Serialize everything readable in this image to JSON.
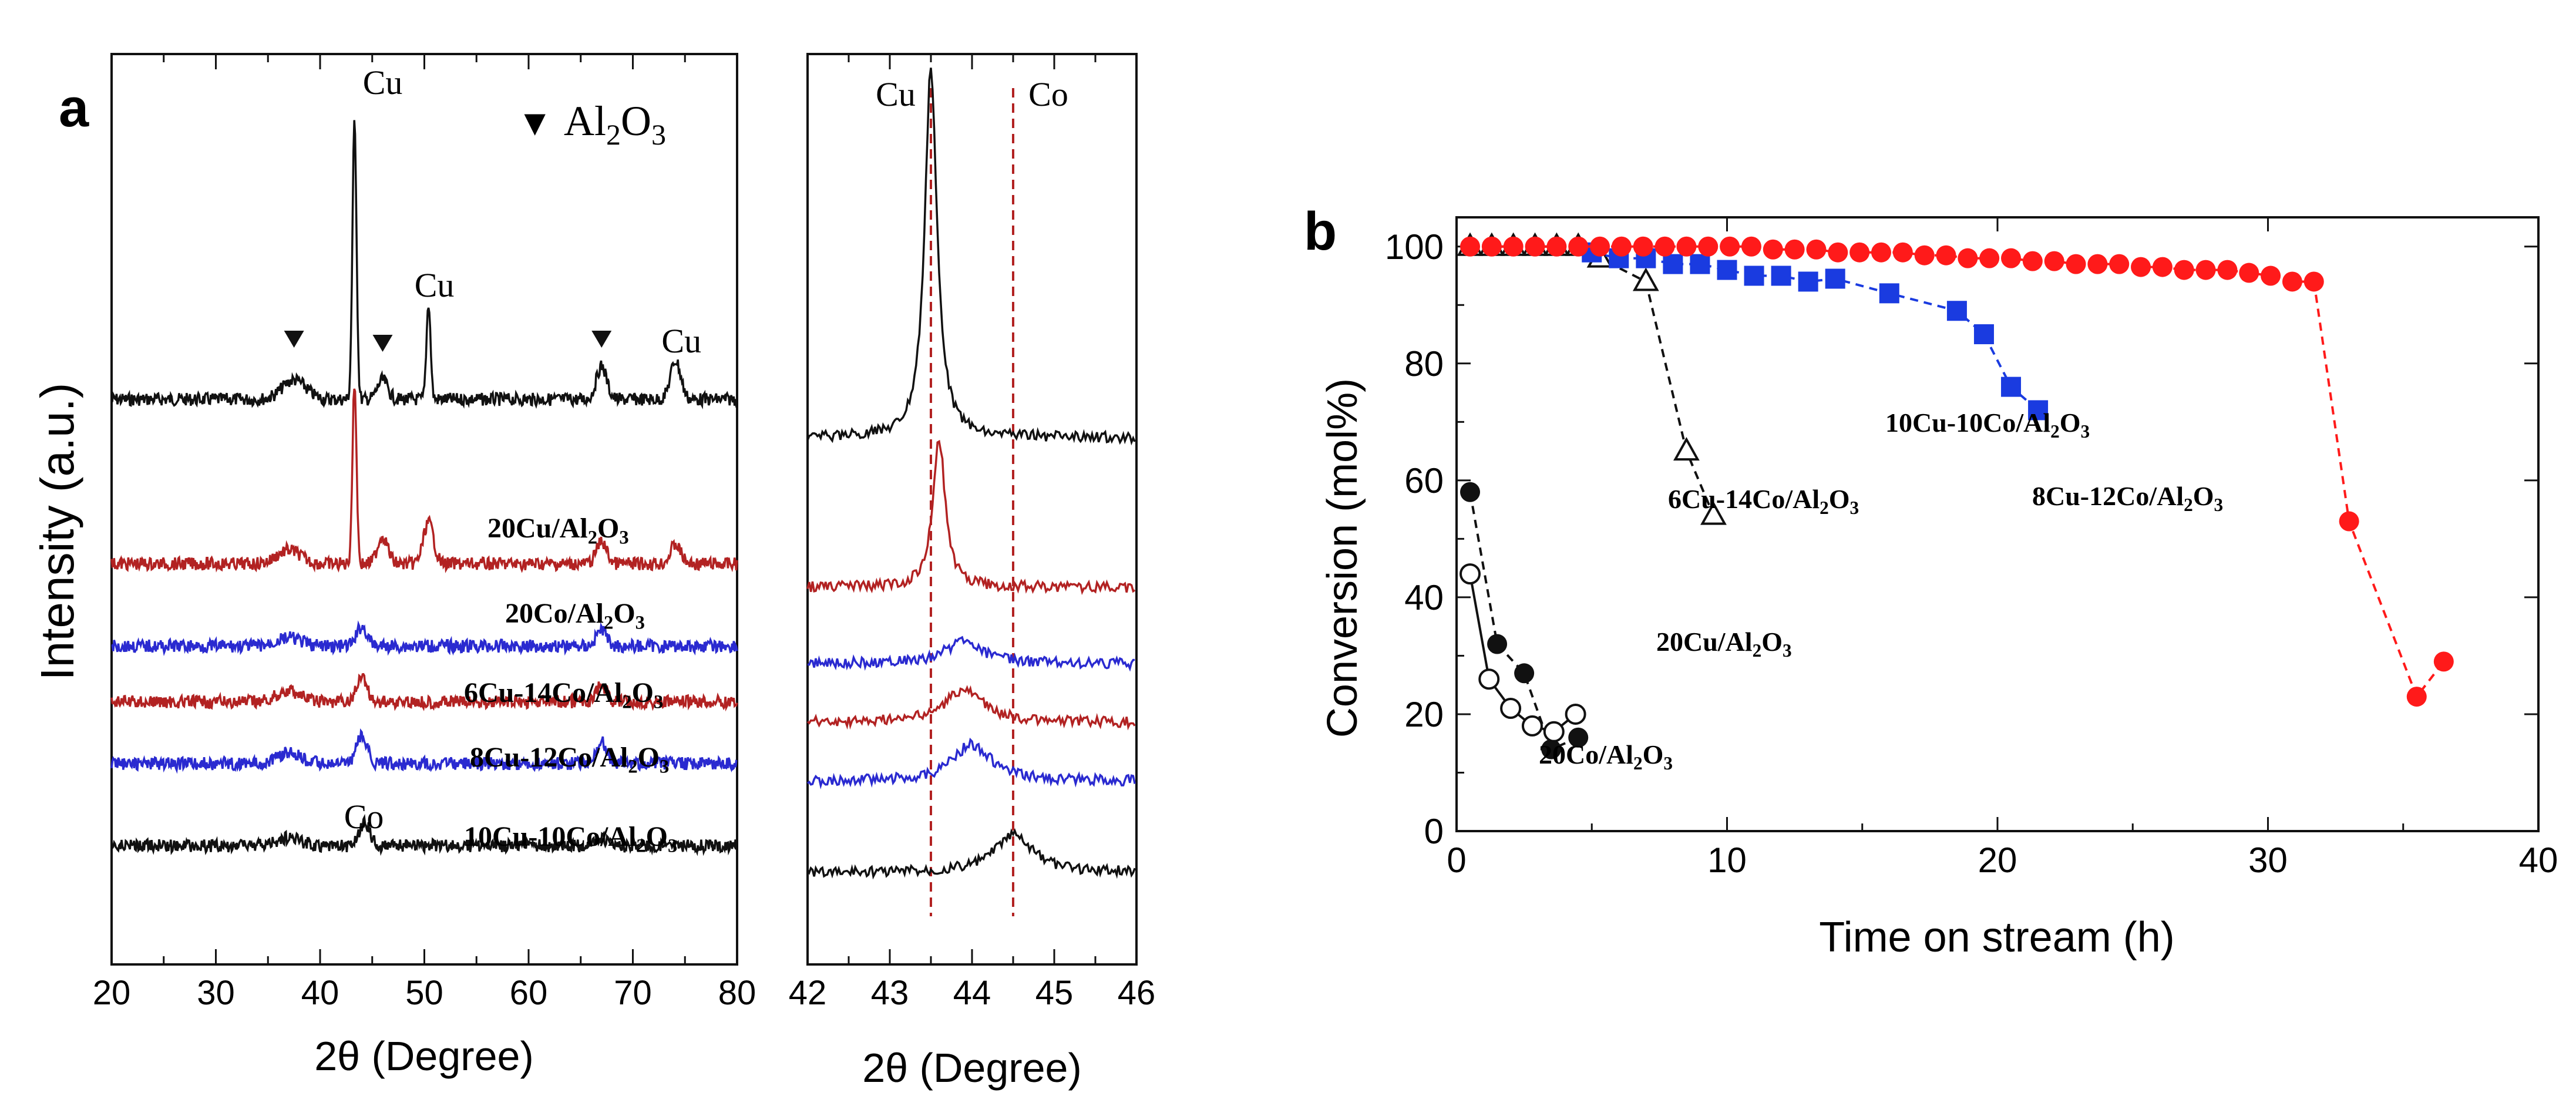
{
  "panel_a": {
    "label": "a",
    "ylabel": "Intensity (a.u.)",
    "xlabel_left": "2θ (Degree)",
    "xlabel_right": "2θ (Degree)",
    "left_xticks": [
      "20",
      "30",
      "40",
      "50",
      "60",
      "70",
      "80"
    ],
    "right_xticks": [
      "42",
      "43",
      "44",
      "45",
      "46"
    ],
    "legend_marker": "▼",
    "legend_base": "Al",
    "legend_sub1": "2",
    "legend_mid": "O",
    "legend_sub2": "3",
    "peak_labels": [
      {
        "text": "Cu",
        "angle": 43.3
      },
      {
        "text": "Cu",
        "angle": 50.4
      },
      {
        "text": "Cu",
        "angle": 74.1
      },
      {
        "text": "Co",
        "angle": 44.2
      }
    ],
    "right_peak_labels": [
      {
        "text": "Cu",
        "angle": 43.5
      },
      {
        "text": "Co",
        "angle": 44.5
      }
    ],
    "al2o3_positions": [
      37.5,
      46.0,
      67.0
    ],
    "trace_labels": [
      {
        "pre": "20Cu/Al",
        "sub1": "2",
        "mid": "O",
        "sub2": "3"
      },
      {
        "pre": "20Co/Al",
        "sub1": "2",
        "mid": "O",
        "sub2": "3"
      },
      {
        "pre": "6Cu-14Co/Al",
        "sub1": "2",
        "mid": "O",
        "sub2": "3"
      },
      {
        "pre": "8Cu-12Co/Al",
        "sub1": "2",
        "mid": "O",
        "sub2": "3"
      },
      {
        "pre": "10Cu-10Co/Al",
        "sub1": "2",
        "mid": "O",
        "sub2": "3"
      }
    ]
  },
  "chart_data": [
    {
      "type": "line",
      "panel": "a-left",
      "xlabel": "2θ (Degree)",
      "ylabel": "Intensity (a.u.)",
      "xlim": [
        20,
        80
      ],
      "series": [
        {
          "color": "#111111",
          "peaks": [
            [
              37.5,
              0.07
            ],
            [
              43.3,
              1.0
            ],
            [
              46.0,
              0.07
            ],
            [
              50.4,
              0.35
            ],
            [
              67.0,
              0.12
            ],
            [
              74.1,
              0.14
            ]
          ]
        },
        {
          "color": "#b22222",
          "peaks": [
            [
              37.0,
              0.05
            ],
            [
              43.3,
              0.65
            ],
            [
              46.0,
              0.1
            ],
            [
              50.4,
              0.15
            ],
            [
              67.0,
              0.08
            ],
            [
              74.1,
              0.07
            ]
          ]
        },
        {
          "color": "#2a2ad0",
          "peaks": [
            [
              37.0,
              0.03
            ],
            [
              44.0,
              0.07
            ],
            [
              67.0,
              0.06
            ]
          ]
        },
        {
          "color": "#b22222",
          "peaks": [
            [
              37.0,
              0.04
            ],
            [
              44.0,
              0.09
            ],
            [
              67.0,
              0.06
            ]
          ]
        },
        {
          "color": "#2a2ad0",
          "peaks": [
            [
              37.0,
              0.04
            ],
            [
              44.0,
              0.1
            ],
            [
              67.0,
              0.08
            ]
          ]
        },
        {
          "color": "#111111",
          "peaks": [
            [
              37.0,
              0.03
            ],
            [
              44.3,
              0.08
            ],
            [
              67.0,
              0.03
            ]
          ]
        }
      ]
    },
    {
      "type": "line",
      "panel": "a-right",
      "xlabel": "2θ (Degree)",
      "xlim": [
        42,
        46
      ],
      "reference_lines": [
        43.5,
        44.5
      ],
      "series": [
        {
          "color": "#111111",
          "peaks": [
            [
              43.5,
              1.0
            ]
          ]
        },
        {
          "color": "#b22222",
          "peaks": [
            [
              43.6,
              0.4
            ]
          ]
        },
        {
          "color": "#2a2ad0",
          "peaks": [
            [
              43.9,
              0.06
            ]
          ]
        },
        {
          "color": "#b22222",
          "peaks": [
            [
              43.9,
              0.09
            ]
          ]
        },
        {
          "color": "#2a2ad0",
          "peaks": [
            [
              44.0,
              0.1
            ]
          ]
        },
        {
          "color": "#111111",
          "peaks": [
            [
              44.5,
              0.1
            ]
          ]
        }
      ]
    },
    {
      "type": "scatter",
      "panel": "b",
      "label": "b",
      "xlabel": "Time on stream (h)",
      "ylabel": "Conversion (mol%)",
      "xlim": [
        0,
        40
      ],
      "ylim": [
        0,
        105
      ],
      "xticks": [
        "0",
        "10",
        "20",
        "30",
        "40"
      ],
      "yticks": [
        "0",
        "20",
        "40",
        "60",
        "80",
        "100"
      ],
      "series": [
        {
          "label_pre": "8Cu-12Co/Al",
          "label_sub1": "2",
          "label_mid": "O",
          "label_sub2": "3",
          "color": "#ff1a1a",
          "marker": "circle-filled",
          "line": "dashed",
          "x": [
            0.5,
            1.3,
            2.1,
            2.9,
            3.7,
            4.5,
            5.3,
            6.1,
            6.9,
            7.7,
            8.5,
            9.3,
            10.1,
            10.9,
            11.7,
            12.5,
            13.3,
            14.1,
            14.9,
            15.7,
            16.5,
            17.3,
            18.1,
            18.9,
            19.7,
            20.5,
            21.3,
            22.1,
            22.9,
            23.7,
            24.5,
            25.3,
            26.1,
            26.9,
            27.7,
            28.5,
            29.3,
            30.1,
            30.9,
            31.7,
            33.0,
            35.5,
            36.5
          ],
          "y": [
            100,
            100,
            100,
            100,
            100,
            100,
            100,
            100,
            100,
            100,
            100,
            100,
            100,
            100,
            99.5,
            99.5,
            99.5,
            99,
            99,
            99,
            99,
            98.5,
            98.5,
            98,
            98,
            98,
            97.5,
            97.5,
            97,
            97,
            97,
            96.5,
            96.5,
            96,
            96,
            96,
            95.5,
            95,
            94,
            94,
            53,
            23,
            29
          ]
        },
        {
          "label_pre": "10Cu-10Co/Al",
          "label_sub1": "2",
          "label_mid": "O",
          "label_sub2": "3",
          "color": "#1a3be0",
          "marker": "square-filled",
          "line": "dashed",
          "x": [
            5.0,
            6.0,
            7.0,
            8.0,
            9.0,
            10.0,
            11.0,
            12.0,
            13.0,
            14.0,
            16.0,
            18.5,
            19.5,
            20.5,
            21.5
          ],
          "y": [
            99,
            98,
            98,
            97,
            97,
            96,
            95,
            95,
            94,
            94.5,
            92,
            89,
            85,
            76,
            72
          ]
        },
        {
          "label_pre": "6Cu-14Co/Al",
          "label_sub1": "2",
          "label_mid": "O",
          "label_sub2": "3",
          "color": "#111111",
          "marker": "triangle-open",
          "line": "dashed",
          "x": [
            0.5,
            1.3,
            2.1,
            2.9,
            3.7,
            4.5,
            5.3,
            7.0,
            8.5,
            9.5
          ],
          "y": [
            100,
            100,
            100,
            100,
            100,
            100,
            98,
            94,
            65,
            54
          ]
        },
        {
          "label_pre": "20Cu/Al",
          "label_sub1": "2",
          "label_mid": "O",
          "label_sub2": "3",
          "color": "#111111",
          "marker": "circle-filled",
          "line": "dashed",
          "x": [
            0.5,
            1.5,
            2.5,
            3.5,
            4.5
          ],
          "y": [
            58,
            32,
            27,
            14,
            16
          ]
        },
        {
          "label_pre": "20Co/Al",
          "label_sub1": "2",
          "label_mid": "O",
          "label_sub2": "3",
          "color": "#111111",
          "marker": "circle-open",
          "line": "solid",
          "x": [
            0.5,
            1.2,
            2.0,
            2.8,
            3.6,
            4.4
          ],
          "y": [
            44,
            26,
            21,
            18,
            17,
            20
          ]
        }
      ]
    }
  ]
}
